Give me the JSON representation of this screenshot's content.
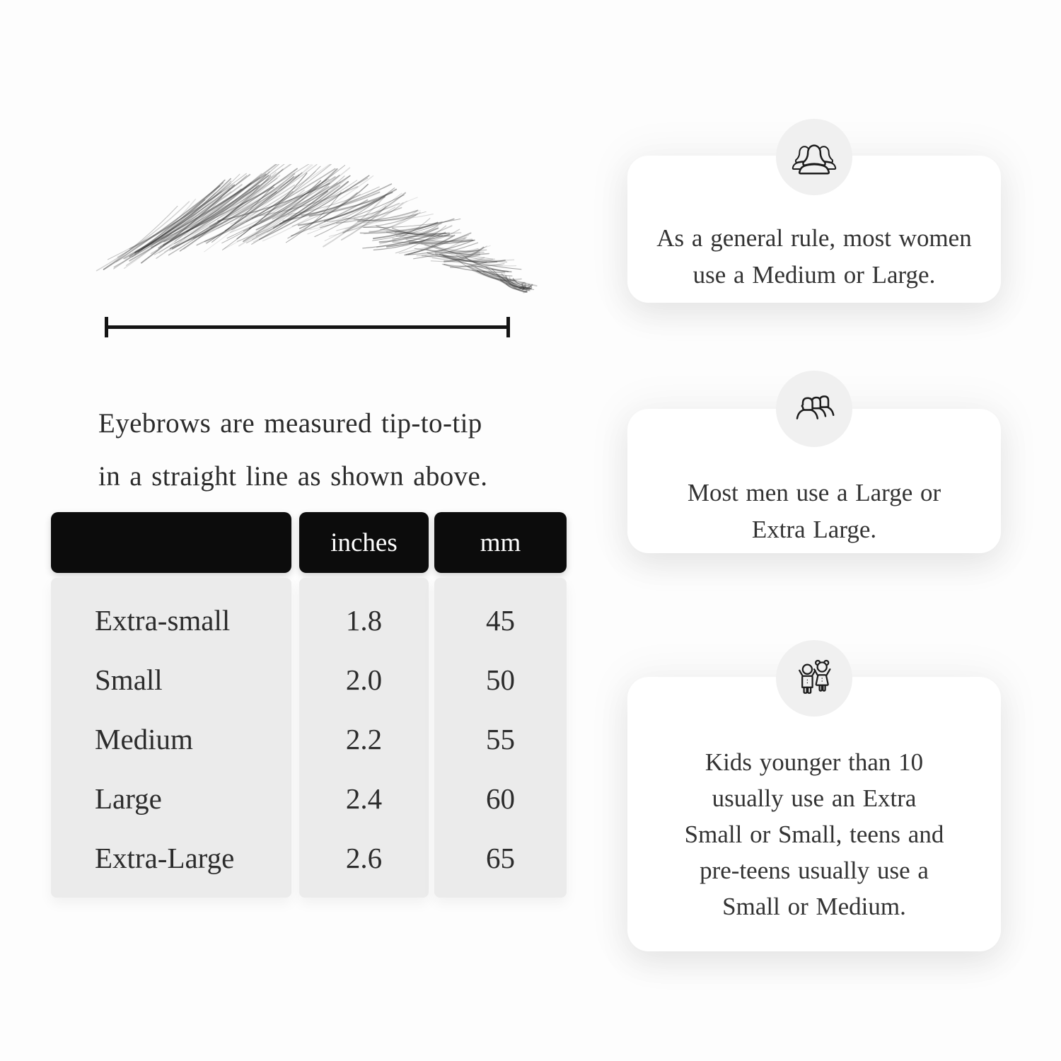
{
  "colors": {
    "page_background": "#fdfdfd",
    "table_header_bg": "#0c0c0c",
    "table_header_text": "#ffffff",
    "table_body_bg": "#ebebeb",
    "card_bg": "#ffffff",
    "badge_bg": "#f0f0f0",
    "ink": "#2d2d2d"
  },
  "diagram": {
    "illustration": "eyebrow-sketch",
    "caption": "Eyebrows are measured tip-to-tip\nin a straight line as shown above."
  },
  "size_table": {
    "columns": [
      "",
      "inches",
      "mm"
    ],
    "rows": [
      {
        "size": "Extra-small",
        "inches": "1.8",
        "mm": "45"
      },
      {
        "size": "Small",
        "inches": "2.0",
        "mm": "50"
      },
      {
        "size": "Medium",
        "inches": "2.2",
        "mm": "55"
      },
      {
        "size": "Large",
        "inches": "2.4",
        "mm": "60"
      },
      {
        "size": "Extra-Large",
        "inches": "2.6",
        "mm": "65"
      }
    ]
  },
  "cards": [
    {
      "icon": "women-group-icon",
      "text": "As a general rule, most women\nuse a Medium or Large."
    },
    {
      "icon": "men-group-icon",
      "text": "Most men use a Large or\nExtra Large."
    },
    {
      "icon": "kids-icon",
      "text": "Kids younger than 10\nusually use an Extra\nSmall or Small, teens and\npre-teens usually use a\nSmall or Medium."
    }
  ]
}
